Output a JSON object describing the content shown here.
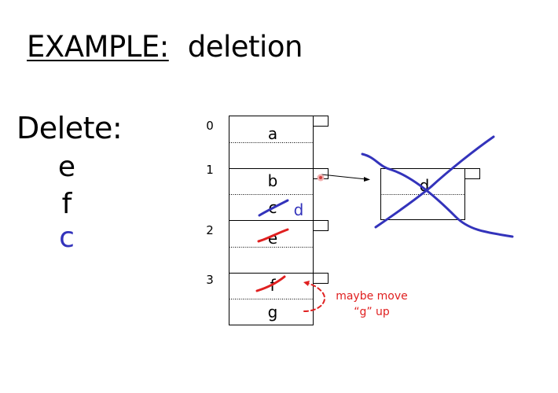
{
  "slide": {
    "title_prefix": "EXAMPLE:",
    "title_text": "deletion",
    "delete_heading": "Delete:",
    "delete_items": [
      {
        "label": "e",
        "color": "#000000"
      },
      {
        "label": "f",
        "color": "#000000"
      },
      {
        "label": "c",
        "color": "#3333bb"
      }
    ]
  },
  "diagram": {
    "bucket_indices": [
      "0",
      "1",
      "2",
      "3"
    ],
    "buckets": [
      {
        "primary": "a",
        "secondary": ""
      },
      {
        "primary": "b",
        "secondary": "c"
      },
      {
        "primary": "e",
        "secondary": ""
      },
      {
        "primary": "f",
        "secondary": "g"
      }
    ],
    "overflow_bucket": {
      "primary": "d"
    },
    "annotation_d": "d",
    "note_line1": "maybe move",
    "note_line2": "“g” up",
    "colors": {
      "ink_blue": "#3333bb",
      "ink_red": "#e02020",
      "note_red": "#e02020",
      "pointer_dot": "#e07070"
    }
  }
}
